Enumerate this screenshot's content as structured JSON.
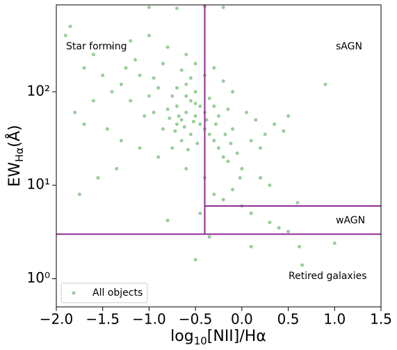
{
  "chart_data": {
    "type": "scatter",
    "xlabel": {
      "main": "log",
      "sub": "10",
      "rest": "[NII]/Hα"
    },
    "ylabel": {
      "main": "EW",
      "sub": "Hα",
      "rest": "(Å)"
    },
    "annotations": [
      "Star forming",
      "sAGN",
      "wAGN",
      "Retired galaxies"
    ],
    "log_y": true,
    "legend": "lower left",
    "xlim": [
      -2.0,
      1.5
    ],
    "ylim": [
      0.5,
      850
    ],
    "xticks": [
      {
        "value": -2,
        "label": "−2.0"
      },
      {
        "value": -1.5,
        "label": "−1.5"
      },
      {
        "value": -1,
        "label": "−1.0"
      },
      {
        "value": -0.5,
        "label": "−0.5"
      },
      {
        "value": 0,
        "label": "0.0"
      },
      0.5,
      {
        "value": 1,
        "label": "1.0"
      },
      1.5
    ],
    "yticks": [
      {
        "value": 1,
        "label": "10⁰"
      },
      {
        "value": 10,
        "label": "10¹"
      },
      {
        "value": 100,
        "label": "10²"
      }
    ],
    "dividers": {
      "x": -0.4,
      "y_low": 3,
      "y_high": 6,
      "color": "#8e2a94"
    },
    "series": [
      {
        "name": "All objects",
        "color": "#008000",
        "x": [
          -0.6,
          -0.5,
          -0.7,
          -0.45,
          -0.55,
          -0.65,
          -0.4,
          -0.75,
          -0.8,
          -0.35,
          -0.5,
          -0.6,
          -0.9,
          -1.0,
          -1.1,
          -0.3,
          -0.25,
          -0.2,
          -0.15,
          -0.1,
          -0.05,
          0.0,
          0.1,
          0.2,
          0.3,
          -0.45,
          -0.55,
          -0.65,
          -0.7,
          -0.85,
          -0.95,
          -1.05,
          -1.2,
          -1.3,
          -1.4,
          -1.5,
          -1.6,
          -1.7,
          -1.8,
          -1.9,
          -1.85,
          -1.7,
          -1.6,
          -1.4,
          -1.2,
          -1.0,
          -0.8,
          -0.6,
          -0.5,
          -0.4,
          -0.3,
          -0.2,
          -0.1,
          0.05,
          0.15,
          0.25,
          0.35,
          0.5,
          0.9,
          0.2,
          -0.3,
          -0.35,
          -0.25,
          -0.15,
          -0.75,
          -0.9,
          -1.1,
          -1.3,
          -0.6,
          -0.4,
          -0.3,
          -0.2,
          -0.1,
          0.0,
          0.1,
          0.3,
          0.4,
          0.5,
          0.6,
          -0.45,
          -0.8,
          -1.0,
          -0.7,
          -0.4,
          -0.2,
          -0.35,
          -0.5,
          0.1,
          0.65,
          1.0,
          0.62,
          -0.55,
          -0.65,
          -0.85,
          -1.15,
          -1.25,
          -0.95,
          -0.7,
          -0.6,
          -0.5,
          -0.4,
          -0.52,
          -0.62,
          -0.72,
          -0.48,
          -0.58,
          -0.68,
          -0.78,
          -0.38,
          -0.28,
          -0.18,
          -1.75,
          -1.55,
          -1.35,
          -1.45,
          -0.02,
          0.45,
          -0.12
        ],
        "values": [
          60,
          55,
          70,
          45,
          80,
          50,
          40,
          90,
          65,
          35,
          100,
          120,
          110,
          90,
          150,
          30,
          25,
          20,
          18,
          40,
          22,
          15,
          30,
          12,
          10,
          70,
          35,
          30,
          45,
          40,
          60,
          55,
          80,
          120,
          100,
          150,
          80,
          45,
          60,
          400,
          500,
          180,
          250,
          300,
          350,
          400,
          300,
          250,
          200,
          150,
          180,
          130,
          100,
          60,
          50,
          35,
          45,
          55,
          120,
          25,
          70,
          85,
          55,
          65,
          25,
          20,
          25,
          30,
          15,
          12,
          8,
          7,
          9,
          6,
          5,
          4,
          3.5,
          3.2,
          6.5,
          5,
          4.2,
          800,
          780,
          820,
          800,
          2.8,
          1.6,
          2.2,
          1.4,
          2.4,
          2.2,
          140,
          170,
          200,
          220,
          180,
          140,
          110,
          90,
          75,
          60,
          48,
          42,
          38,
          28,
          24,
          55,
          52,
          50,
          45,
          35,
          8,
          12,
          15,
          40,
          12,
          38,
          28
        ]
      }
    ]
  }
}
